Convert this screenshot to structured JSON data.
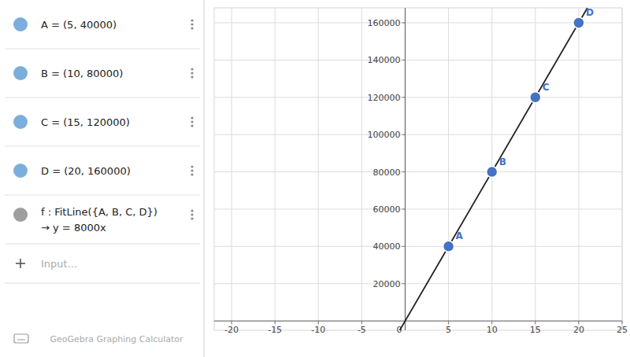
{
  "chart_data": {
    "type": "scatter",
    "xlim": [
      -22,
      25
    ],
    "ylim": [
      -5000,
      168000
    ],
    "xticks": [
      -20,
      -15,
      -10,
      -5,
      0,
      5,
      10,
      15,
      20,
      25
    ],
    "yticks": [
      20000,
      40000,
      60000,
      80000,
      100000,
      120000,
      140000,
      160000
    ],
    "grid": true,
    "series": [
      {
        "type": "scatter",
        "color": "#4472C4",
        "x": [
          5,
          10,
          15,
          20
        ],
        "values": [
          40000,
          80000,
          120000,
          160000
        ],
        "labels": [
          "A",
          "B",
          "C",
          "D"
        ]
      },
      {
        "type": "line",
        "color": "#222222",
        "x": [
          -0.625,
          21
        ],
        "values": [
          -5000,
          168000
        ]
      }
    ],
    "annotations": [
      "A = (5, 40000)",
      "B = (10, 80000)",
      "C = (15, 120000)",
      "D = (20, 160000)",
      "f : FitLine({A, B, C, D})",
      "→ y = 8000x",
      "Input...",
      "GeoGebra Graphing Calculator"
    ]
  }
}
